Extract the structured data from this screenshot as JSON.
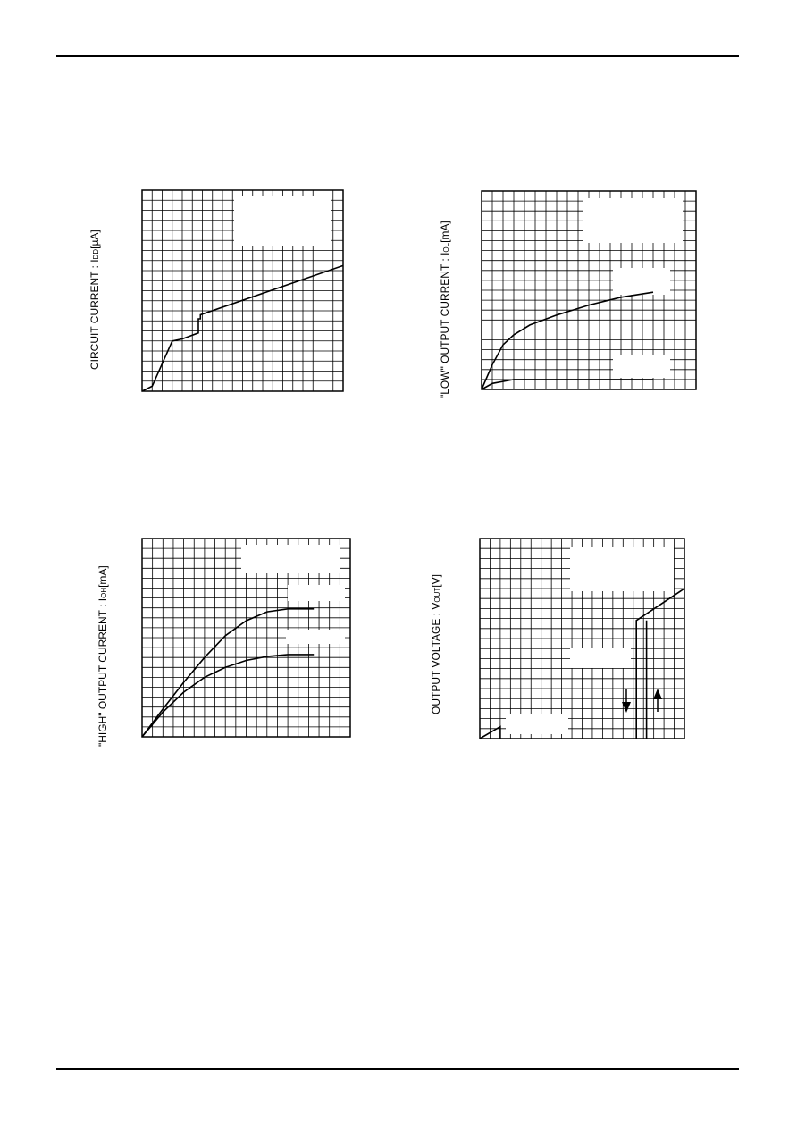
{
  "page": {
    "rule_color": "#000000"
  },
  "charts": [
    {
      "id": "circuit-current",
      "ylabel": {
        "main": "CIRCUIT CURRENT : I",
        "sub": "DD",
        "unit": "[µA]"
      }
    },
    {
      "id": "low-output-current",
      "ylabel": {
        "main": "\"LOW\" OUTPUT CURRENT : I",
        "sub": "OL",
        "unit": "[mA]"
      }
    },
    {
      "id": "high-output-current",
      "ylabel": {
        "main": "\"HIGH\" OUTPUT CURRENT : I",
        "sub": "OH",
        "unit": "[mA]"
      }
    },
    {
      "id": "output-voltage",
      "ylabel": {
        "main": "OUTPUT VOLTAGE : V",
        "sub": "OUT",
        "unit": "[V]"
      }
    }
  ],
  "chart_data": [
    {
      "type": "line",
      "title": "",
      "ylabel": "CIRCUIT CURRENT : IDD[µA]",
      "xlabel": "",
      "grid": true,
      "xlim": [
        0,
        20
      ],
      "ylim": [
        0,
        20
      ],
      "series": [
        {
          "x": [
            0,
            1,
            3,
            4,
            5.6,
            5.6,
            5.8,
            5.8,
            20
          ],
          "y": [
            0,
            0.5,
            5,
            5.2,
            5.8,
            7.2,
            7.2,
            7.6,
            12.5
          ]
        }
      ]
    },
    {
      "type": "line",
      "title": "",
      "ylabel": "\"LOW\" OUTPUT CURRENT : IOL[mA]",
      "xlabel": "",
      "grid": true,
      "xlim": [
        0,
        20
      ],
      "ylim": [
        0,
        20
      ],
      "series": [
        {
          "x": [
            0,
            1,
            2,
            3,
            4.5,
            7,
            10,
            13,
            16
          ],
          "y": [
            0,
            2.5,
            4.5,
            5.5,
            6.5,
            7.5,
            8.5,
            9.3,
            9.8
          ]
        },
        {
          "x": [
            0,
            1,
            3,
            16
          ],
          "y": [
            0,
            0.6,
            1,
            1
          ]
        }
      ]
    },
    {
      "type": "line",
      "title": "",
      "ylabel": "\"HIGH\" OUTPUT CURRENT : IOH[mA]",
      "xlabel": "",
      "grid": true,
      "xlim": [
        0,
        20
      ],
      "ylim": [
        0,
        20
      ],
      "series": [
        {
          "x": [
            0,
            2,
            4,
            6,
            8,
            10,
            12,
            14,
            16.5
          ],
          "y": [
            0,
            2.8,
            5.5,
            8,
            10.2,
            11.7,
            12.6,
            12.9,
            12.9
          ]
        },
        {
          "x": [
            0,
            2,
            4,
            6,
            8,
            10,
            12,
            14,
            16.5
          ],
          "y": [
            0,
            2.5,
            4.5,
            6,
            7,
            7.7,
            8.1,
            8.3,
            8.3
          ]
        }
      ]
    },
    {
      "type": "line",
      "title": "",
      "ylabel": "OUTPUT VOLTAGE : VOUT[V]",
      "xlabel": "",
      "grid": true,
      "xlim": [
        0,
        20
      ],
      "ylim": [
        0,
        20
      ],
      "series": [
        {
          "x": [
            0,
            2,
            2
          ],
          "y": [
            0,
            1.2,
            0
          ]
        },
        {
          "x": [
            15.3,
            15.3,
            20
          ],
          "y": [
            0,
            11.8,
            15
          ]
        },
        {
          "x": [
            16.3,
            16.3
          ],
          "y": [
            0,
            11.8
          ]
        }
      ]
    }
  ]
}
